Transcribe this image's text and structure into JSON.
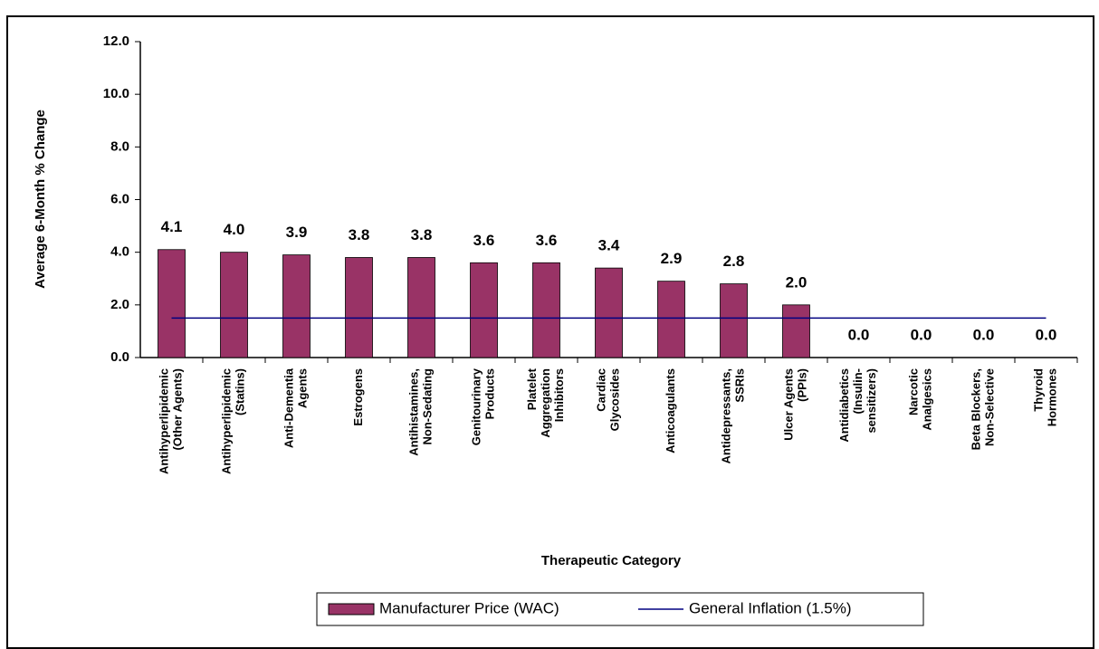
{
  "chart_data": {
    "type": "bar",
    "ylabel": "Average 6-Month % Change",
    "xlabel": "Therapeutic Category",
    "categories": [
      [
        "Antihyperlipidemic",
        "(Other Agents)"
      ],
      [
        "Antihyperlipidemic",
        "(Statins)"
      ],
      [
        "Anti-Dementia",
        "Agents"
      ],
      [
        "Estrogens"
      ],
      [
        "Antihistamines,",
        "Non-Sedating"
      ],
      [
        "Genitourinary",
        "Products"
      ],
      [
        "Platelet",
        "Aggregation",
        "Inhibitors"
      ],
      [
        "Cardiac",
        "Glycosides"
      ],
      [
        "Anticoagulants"
      ],
      [
        "Antidepressants,",
        "SSRIs"
      ],
      [
        "Ulcer Agents",
        "(PPIs)"
      ],
      [
        "Antidiabetics",
        "(Insulin-",
        "sensitizers)"
      ],
      [
        "Narcotic",
        "Analgesics"
      ],
      [
        "Beta Blockers,",
        "Non-Selective"
      ],
      [
        "Thyroid",
        "Hormones"
      ]
    ],
    "series": [
      {
        "name": "Manufacturer Price (WAC)",
        "color": "#993366",
        "values": [
          4.1,
          4.0,
          3.9,
          3.8,
          3.8,
          3.6,
          3.6,
          3.4,
          2.9,
          2.8,
          2.0,
          0,
          0,
          0,
          0
        ],
        "value_labels": [
          "4.1",
          "4.0",
          "3.9",
          "3.8",
          "3.8",
          "3.6",
          "3.6",
          "3.4",
          "2.9",
          "2.8",
          "2.0",
          "0.0",
          "0.0",
          "0.0",
          "0.0"
        ]
      },
      {
        "name": "General Inflation (1.5%)",
        "color": "#000080",
        "type": "line",
        "values": [
          1.5,
          1.5,
          1.5,
          1.5,
          1.5,
          1.5,
          1.5,
          1.5,
          1.5,
          1.5,
          1.5,
          1.5,
          1.5,
          1.5,
          1.5
        ]
      }
    ],
    "ylim": [
      0,
      12
    ],
    "yticks": [
      {
        "value": 0,
        "label": "0.0"
      },
      {
        "value": 2,
        "label": "2.0"
      },
      {
        "value": 4,
        "label": "4.0"
      },
      {
        "value": 6,
        "label": "6.0"
      },
      {
        "value": 8,
        "label": "8.0"
      },
      {
        "value": 10,
        "label": "10.0"
      },
      {
        "value": 12,
        "label": "12.0"
      }
    ]
  }
}
